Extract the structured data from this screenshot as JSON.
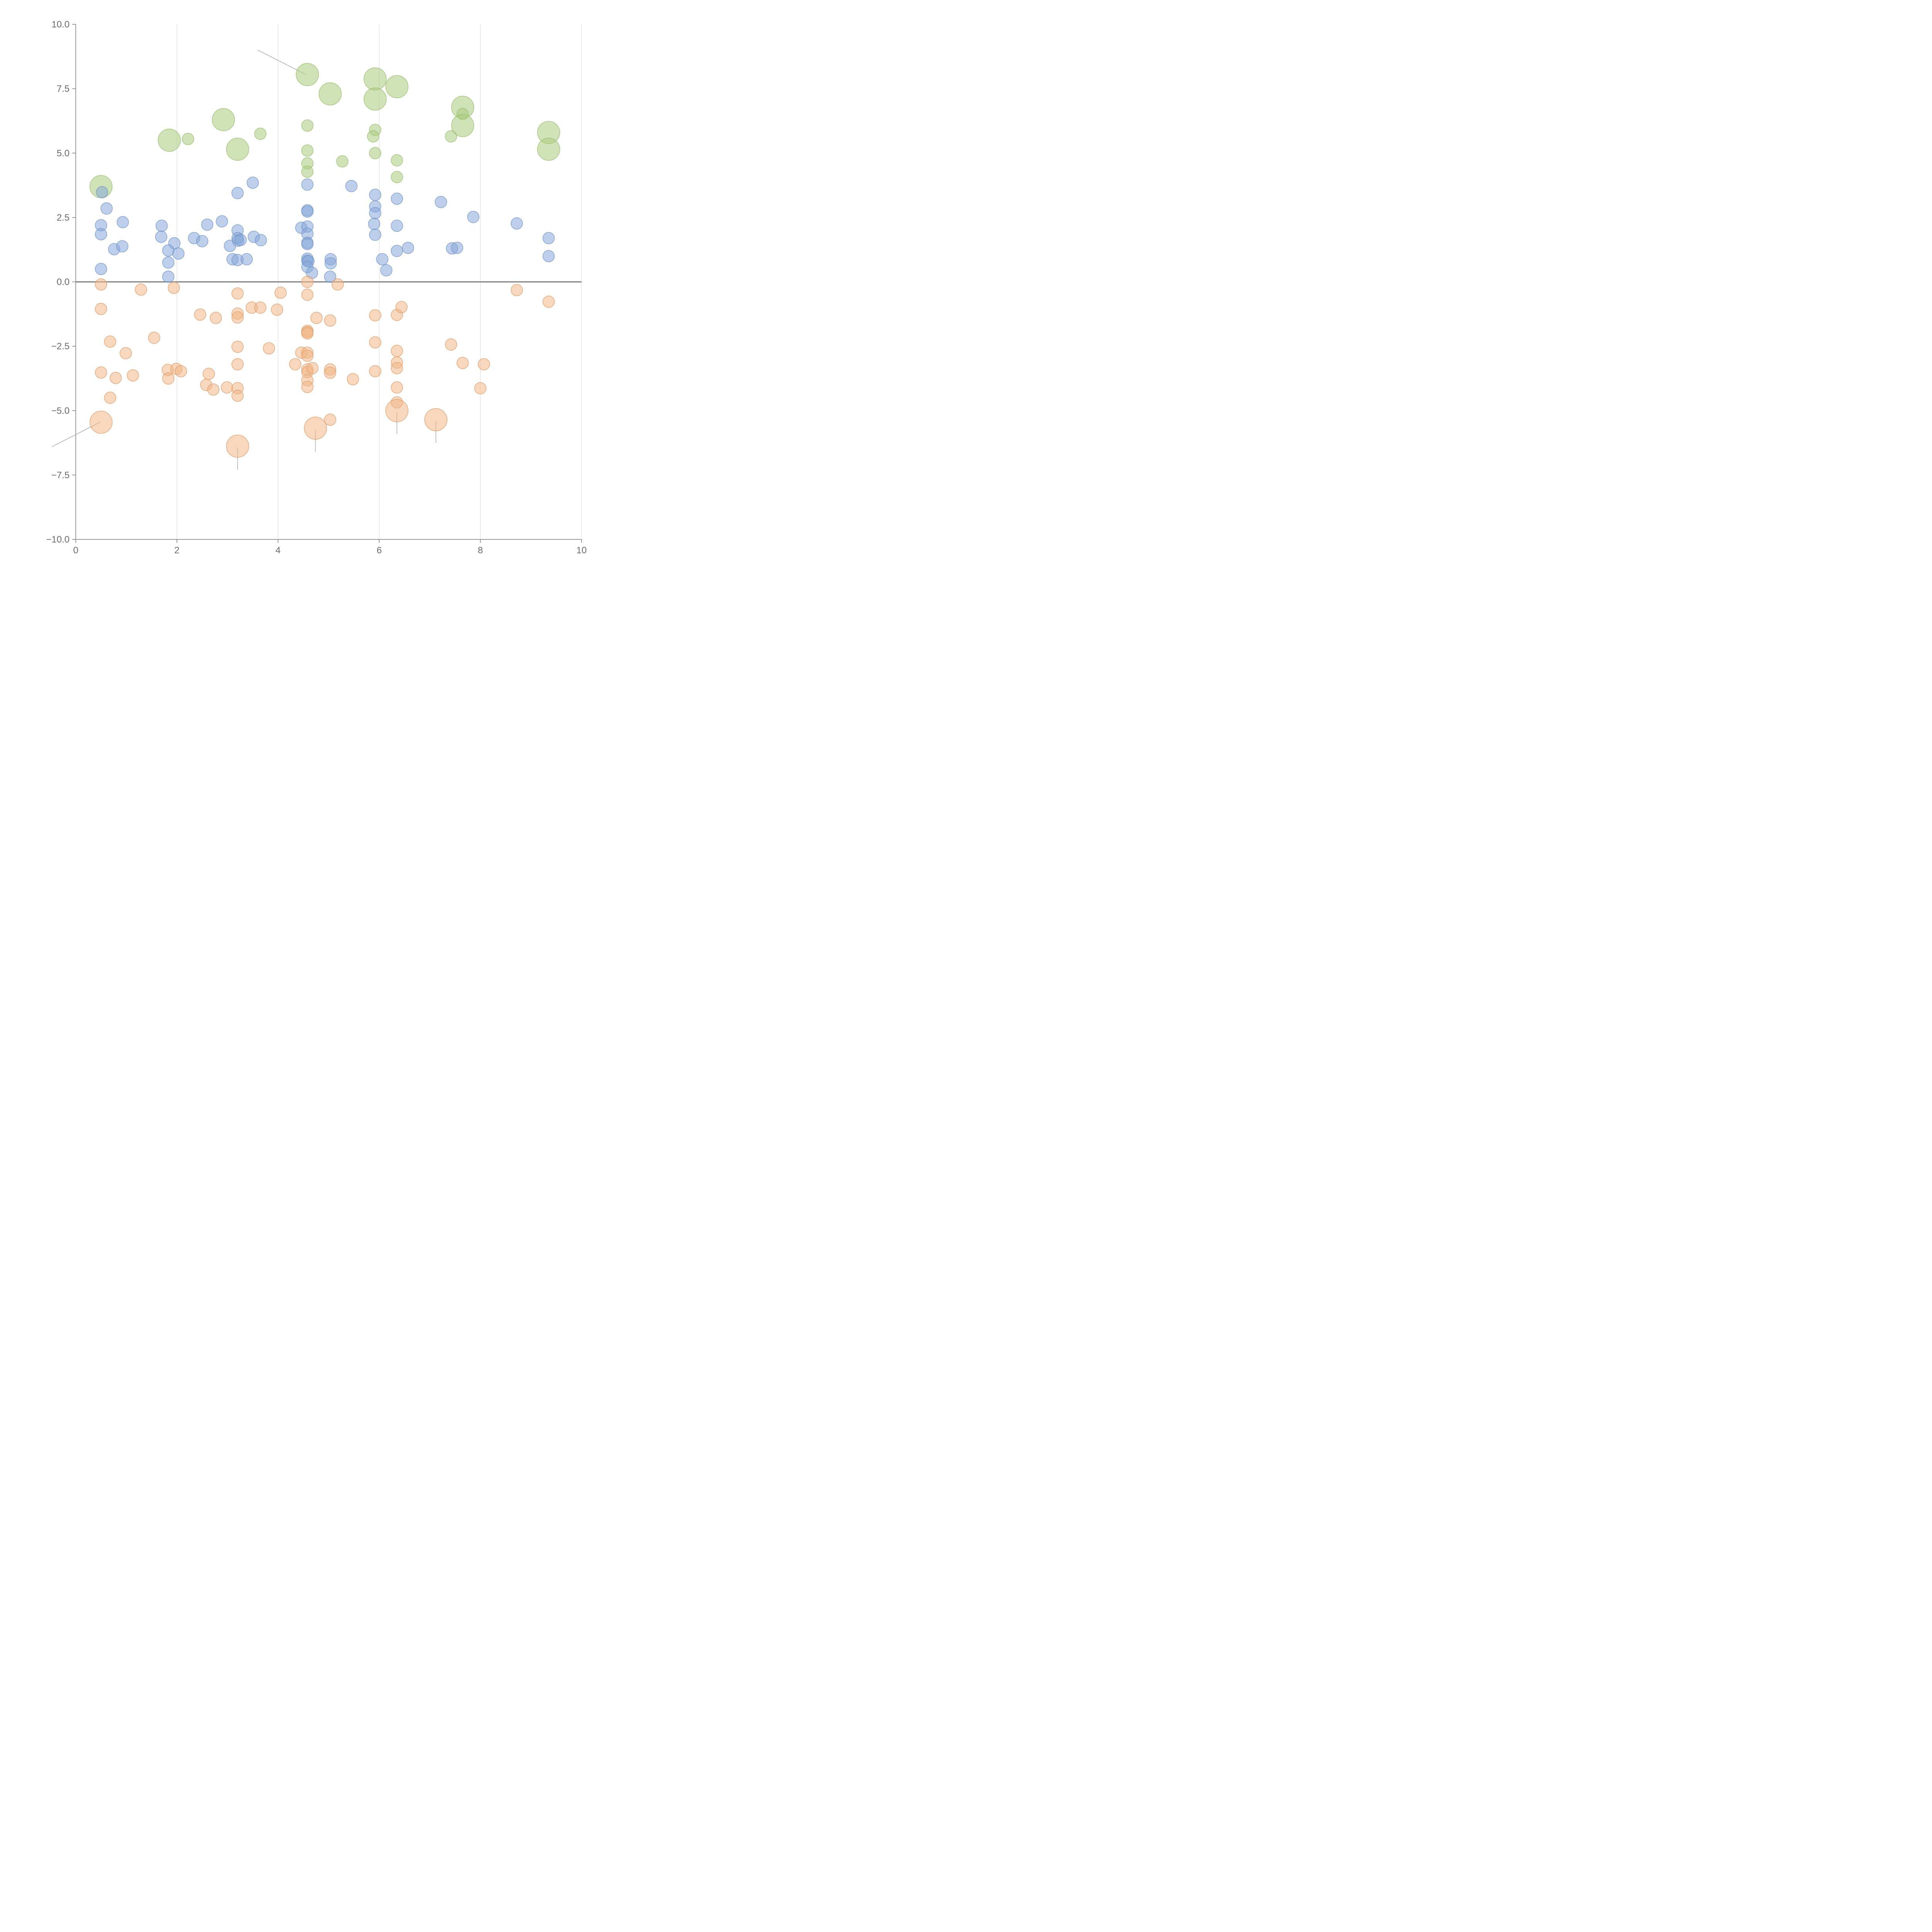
{
  "chart_data": {
    "type": "scatter",
    "subtype": "bubble",
    "title": "",
    "xlabel": "",
    "ylabel": "",
    "xlim": [
      0,
      10
    ],
    "ylim": [
      -10,
      10
    ],
    "x_ticks": [
      0,
      2,
      4,
      6,
      8,
      10
    ],
    "x_tick_labels": [
      "0",
      "2",
      "4",
      "6",
      "8",
      "10"
    ],
    "y_ticks": [
      10,
      7.5,
      5,
      2.5,
      0,
      -2.5,
      -5,
      -7.5,
      -10
    ],
    "y_tick_labels": [
      "10.0",
      "7.5",
      "5.0",
      "2.5",
      "0.0",
      "−2.5",
      "−5.0",
      "−7.5",
      "−10.0"
    ],
    "vertical_grid": true,
    "zero_line": true,
    "legend": "none",
    "series": [
      {
        "name": "green",
        "color": "#a9cc7e",
        "stroke": "#98bd6a",
        "points": [
          {
            "x": 0.5,
            "y": 3.7,
            "s": 2
          },
          {
            "x": 1.85,
            "y": 5.5,
            "s": 2
          },
          {
            "x": 2.22,
            "y": 5.55,
            "s": 1
          },
          {
            "x": 2.92,
            "y": 6.3,
            "s": 2
          },
          {
            "x": 3.2,
            "y": 5.15,
            "s": 2
          },
          {
            "x": 3.65,
            "y": 5.75,
            "s": 1
          },
          {
            "x": 4.58,
            "y": 8.05,
            "s": 2
          },
          {
            "x": 4.58,
            "y": 6.07,
            "s": 1
          },
          {
            "x": 4.58,
            "y": 5.1,
            "s": 1
          },
          {
            "x": 4.58,
            "y": 4.6,
            "s": 1
          },
          {
            "x": 4.58,
            "y": 4.28,
            "s": 1
          },
          {
            "x": 5.03,
            "y": 7.3,
            "s": 2
          },
          {
            "x": 5.27,
            "y": 4.68,
            "s": 1
          },
          {
            "x": 5.92,
            "y": 7.88,
            "s": 2
          },
          {
            "x": 5.92,
            "y": 7.1,
            "s": 2
          },
          {
            "x": 5.92,
            "y": 5.9,
            "s": 1
          },
          {
            "x": 5.88,
            "y": 5.65,
            "s": 1
          },
          {
            "x": 5.92,
            "y": 5.0,
            "s": 1
          },
          {
            "x": 6.35,
            "y": 7.58,
            "s": 2
          },
          {
            "x": 6.35,
            "y": 4.72,
            "s": 1
          },
          {
            "x": 6.35,
            "y": 4.07,
            "s": 1
          },
          {
            "x": 7.42,
            "y": 5.65,
            "s": 1
          },
          {
            "x": 7.65,
            "y": 6.78,
            "s": 2
          },
          {
            "x": 7.65,
            "y": 6.52,
            "s": 1
          },
          {
            "x": 7.65,
            "y": 6.07,
            "s": 2
          },
          {
            "x": 9.35,
            "y": 5.8,
            "s": 2
          },
          {
            "x": 9.35,
            "y": 5.15,
            "s": 2
          }
        ]
      },
      {
        "name": "blue",
        "color": "#86a8d8",
        "stroke": "#6f93c7",
        "points": [
          {
            "x": 0.52,
            "y": 3.48,
            "s": 1
          },
          {
            "x": 0.61,
            "y": 2.85,
            "s": 1
          },
          {
            "x": 0.5,
            "y": 2.2,
            "s": 1
          },
          {
            "x": 0.5,
            "y": 1.85,
            "s": 1
          },
          {
            "x": 0.76,
            "y": 1.27,
            "s": 1
          },
          {
            "x": 0.93,
            "y": 2.32,
            "s": 1
          },
          {
            "x": 0.92,
            "y": 1.38,
            "s": 1
          },
          {
            "x": 0.5,
            "y": 0.5,
            "s": 1
          },
          {
            "x": 1.7,
            "y": 2.18,
            "s": 1
          },
          {
            "x": 1.69,
            "y": 1.75,
            "s": 1
          },
          {
            "x": 1.95,
            "y": 1.5,
            "s": 1
          },
          {
            "x": 1.83,
            "y": 1.22,
            "s": 1
          },
          {
            "x": 2.03,
            "y": 1.1,
            "s": 1
          },
          {
            "x": 1.83,
            "y": 0.75,
            "s": 1
          },
          {
            "x": 1.83,
            "y": 0.2,
            "s": 1
          },
          {
            "x": 2.34,
            "y": 1.7,
            "s": 1
          },
          {
            "x": 2.5,
            "y": 1.58,
            "s": 1
          },
          {
            "x": 2.6,
            "y": 2.22,
            "s": 1
          },
          {
            "x": 2.89,
            "y": 2.35,
            "s": 1
          },
          {
            "x": 3.05,
            "y": 1.4,
            "s": 1
          },
          {
            "x": 3.1,
            "y": 0.88,
            "s": 1
          },
          {
            "x": 3.2,
            "y": 3.45,
            "s": 1
          },
          {
            "x": 3.2,
            "y": 2.0,
            "s": 1
          },
          {
            "x": 3.2,
            "y": 1.7,
            "s": 1
          },
          {
            "x": 3.21,
            "y": 1.6,
            "s": 1
          },
          {
            "x": 3.26,
            "y": 1.63,
            "s": 1
          },
          {
            "x": 3.2,
            "y": 0.85,
            "s": 1
          },
          {
            "x": 3.38,
            "y": 0.88,
            "s": 1
          },
          {
            "x": 3.5,
            "y": 3.85,
            "s": 1
          },
          {
            "x": 3.52,
            "y": 1.75,
            "s": 1
          },
          {
            "x": 3.66,
            "y": 1.62,
            "s": 1
          },
          {
            "x": 4.46,
            "y": 2.1,
            "s": 1
          },
          {
            "x": 4.58,
            "y": 3.78,
            "s": 1
          },
          {
            "x": 4.58,
            "y": 2.78,
            "s": 1
          },
          {
            "x": 4.58,
            "y": 2.73,
            "s": 1
          },
          {
            "x": 4.58,
            "y": 2.15,
            "s": 1
          },
          {
            "x": 4.58,
            "y": 1.87,
            "s": 1
          },
          {
            "x": 4.58,
            "y": 1.52,
            "s": 1
          },
          {
            "x": 4.58,
            "y": 1.47,
            "s": 1
          },
          {
            "x": 4.58,
            "y": 0.9,
            "s": 1
          },
          {
            "x": 4.58,
            "y": 0.82,
            "s": 1
          },
          {
            "x": 4.6,
            "y": 0.8,
            "s": 1
          },
          {
            "x": 4.58,
            "y": 0.58,
            "s": 1
          },
          {
            "x": 4.67,
            "y": 0.35,
            "s": 1
          },
          {
            "x": 5.04,
            "y": 0.88,
            "s": 1
          },
          {
            "x": 5.04,
            "y": 0.72,
            "s": 1
          },
          {
            "x": 5.03,
            "y": 0.2,
            "s": 1
          },
          {
            "x": 5.45,
            "y": 3.72,
            "s": 1
          },
          {
            "x": 5.92,
            "y": 3.38,
            "s": 1
          },
          {
            "x": 5.92,
            "y": 2.93,
            "s": 1
          },
          {
            "x": 5.92,
            "y": 2.67,
            "s": 1
          },
          {
            "x": 5.9,
            "y": 2.25,
            "s": 1
          },
          {
            "x": 5.92,
            "y": 1.83,
            "s": 1
          },
          {
            "x": 6.06,
            "y": 0.88,
            "s": 1
          },
          {
            "x": 6.14,
            "y": 0.45,
            "s": 1
          },
          {
            "x": 6.35,
            "y": 3.23,
            "s": 1
          },
          {
            "x": 6.35,
            "y": 2.18,
            "s": 1
          },
          {
            "x": 6.35,
            "y": 1.2,
            "s": 1
          },
          {
            "x": 6.57,
            "y": 1.32,
            "s": 1
          },
          {
            "x": 7.22,
            "y": 3.1,
            "s": 1
          },
          {
            "x": 7.44,
            "y": 1.3,
            "s": 1
          },
          {
            "x": 7.54,
            "y": 1.32,
            "s": 1
          },
          {
            "x": 7.86,
            "y": 2.52,
            "s": 1
          },
          {
            "x": 8.72,
            "y": 2.27,
            "s": 1
          },
          {
            "x": 9.35,
            "y": 1.7,
            "s": 1
          },
          {
            "x": 9.35,
            "y": 1.0,
            "s": 1
          }
        ]
      },
      {
        "name": "orange",
        "color": "#f0b687",
        "stroke": "#de9b66",
        "points": [
          {
            "x": 0.5,
            "y": -0.1,
            "s": 1
          },
          {
            "x": 0.5,
            "y": -1.05,
            "s": 1
          },
          {
            "x": 0.68,
            "y": -2.32,
            "s": 1
          },
          {
            "x": 0.99,
            "y": -2.77,
            "s": 1
          },
          {
            "x": 0.5,
            "y": -3.52,
            "s": 1
          },
          {
            "x": 0.79,
            "y": -3.73,
            "s": 1
          },
          {
            "x": 1.13,
            "y": -3.63,
            "s": 1
          },
          {
            "x": 0.68,
            "y": -4.5,
            "s": 1
          },
          {
            "x": 0.5,
            "y": -5.45,
            "s": 2
          },
          {
            "x": 1.29,
            "y": -0.3,
            "s": 1
          },
          {
            "x": 1.55,
            "y": -2.17,
            "s": 1
          },
          {
            "x": 1.94,
            "y": -0.23,
            "s": 1
          },
          {
            "x": 1.82,
            "y": -3.42,
            "s": 1
          },
          {
            "x": 1.99,
            "y": -3.38,
            "s": 1
          },
          {
            "x": 2.08,
            "y": -3.47,
            "s": 1
          },
          {
            "x": 1.83,
            "y": -3.75,
            "s": 1
          },
          {
            "x": 2.46,
            "y": -1.27,
            "s": 1
          },
          {
            "x": 2.77,
            "y": -1.4,
            "s": 1
          },
          {
            "x": 2.63,
            "y": -3.57,
            "s": 1
          },
          {
            "x": 2.58,
            "y": -4.0,
            "s": 1
          },
          {
            "x": 2.72,
            "y": -4.18,
            "s": 1
          },
          {
            "x": 2.99,
            "y": -4.1,
            "s": 1
          },
          {
            "x": 3.2,
            "y": -0.45,
            "s": 1
          },
          {
            "x": 3.2,
            "y": -1.23,
            "s": 1
          },
          {
            "x": 3.2,
            "y": -1.38,
            "s": 1
          },
          {
            "x": 3.2,
            "y": -2.52,
            "s": 1
          },
          {
            "x": 3.2,
            "y": -3.2,
            "s": 1
          },
          {
            "x": 3.2,
            "y": -4.13,
            "s": 1
          },
          {
            "x": 3.2,
            "y": -4.42,
            "s": 1
          },
          {
            "x": 3.2,
            "y": -6.38,
            "s": 2
          },
          {
            "x": 3.48,
            "y": -1.0,
            "s": 1
          },
          {
            "x": 3.65,
            "y": -1.0,
            "s": 1
          },
          {
            "x": 3.82,
            "y": -2.58,
            "s": 1
          },
          {
            "x": 3.98,
            "y": -1.08,
            "s": 1
          },
          {
            "x": 4.05,
            "y": -0.42,
            "s": 1
          },
          {
            "x": 4.34,
            "y": -3.2,
            "s": 1
          },
          {
            "x": 4.46,
            "y": -2.75,
            "s": 1
          },
          {
            "x": 4.58,
            "y": 0.0,
            "s": 1
          },
          {
            "x": 4.58,
            "y": -0.5,
            "s": 1
          },
          {
            "x": 4.58,
            "y": -1.9,
            "s": 1
          },
          {
            "x": 4.58,
            "y": -1.95,
            "s": 1
          },
          {
            "x": 4.58,
            "y": -2.0,
            "s": 1
          },
          {
            "x": 4.58,
            "y": -2.75,
            "s": 1
          },
          {
            "x": 4.58,
            "y": -2.87,
            "s": 1
          },
          {
            "x": 4.58,
            "y": -3.4,
            "s": 1
          },
          {
            "x": 4.58,
            "y": -3.5,
            "s": 1
          },
          {
            "x": 4.68,
            "y": -3.35,
            "s": 1
          },
          {
            "x": 4.58,
            "y": -3.82,
            "s": 1
          },
          {
            "x": 4.58,
            "y": -4.08,
            "s": 1
          },
          {
            "x": 4.76,
            "y": -1.4,
            "s": 1
          },
          {
            "x": 4.74,
            "y": -5.68,
            "s": 2
          },
          {
            "x": 5.03,
            "y": -1.5,
            "s": 1
          },
          {
            "x": 5.03,
            "y": -3.4,
            "s": 1
          },
          {
            "x": 5.03,
            "y": -3.53,
            "s": 1
          },
          {
            "x": 5.03,
            "y": -5.35,
            "s": 1
          },
          {
            "x": 5.18,
            "y": -0.1,
            "s": 1
          },
          {
            "x": 5.48,
            "y": -3.78,
            "s": 1
          },
          {
            "x": 5.92,
            "y": -1.3,
            "s": 1
          },
          {
            "x": 5.92,
            "y": -2.35,
            "s": 1
          },
          {
            "x": 5.92,
            "y": -3.47,
            "s": 1
          },
          {
            "x": 6.35,
            "y": -1.28,
            "s": 1
          },
          {
            "x": 6.44,
            "y": -0.98,
            "s": 1
          },
          {
            "x": 6.35,
            "y": -2.68,
            "s": 1
          },
          {
            "x": 6.35,
            "y": -3.13,
            "s": 1
          },
          {
            "x": 6.35,
            "y": -3.35,
            "s": 1
          },
          {
            "x": 6.35,
            "y": -4.1,
            "s": 1
          },
          {
            "x": 6.35,
            "y": -4.68,
            "s": 1
          },
          {
            "x": 6.35,
            "y": -5.0,
            "s": 2
          },
          {
            "x": 7.12,
            "y": -5.35,
            "s": 2
          },
          {
            "x": 7.42,
            "y": -2.43,
            "s": 1
          },
          {
            "x": 7.65,
            "y": -3.15,
            "s": 1
          },
          {
            "x": 8.07,
            "y": -3.2,
            "s": 1
          },
          {
            "x": 8.0,
            "y": -4.13,
            "s": 1
          },
          {
            "x": 8.72,
            "y": -0.32,
            "s": 1
          },
          {
            "x": 9.35,
            "y": -0.77,
            "s": 1
          }
        ]
      }
    ],
    "callout_leaders": [
      {
        "x1": 4.55,
        "y1": 8.05,
        "x2": 3.6,
        "y2": 9.0
      },
      {
        "x1": 0.48,
        "y1": -5.45,
        "x2": -0.47,
        "y2": -6.4
      },
      {
        "x1": 3.2,
        "y1": -6.45,
        "x2": 3.2,
        "y2": -7.3
      },
      {
        "x1": 4.74,
        "y1": -5.75,
        "x2": 4.74,
        "y2": -6.6
      },
      {
        "x1": 6.35,
        "y1": -5.05,
        "x2": 6.35,
        "y2": -5.9
      },
      {
        "x1": 7.12,
        "y1": -5.4,
        "x2": 7.12,
        "y2": -6.25
      }
    ]
  }
}
